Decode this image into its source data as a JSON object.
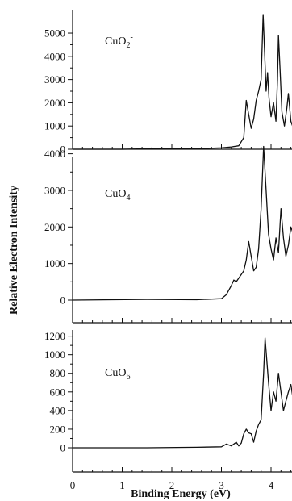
{
  "chart_data": {
    "type": "line",
    "ylabel": "Relative Electron Intensity",
    "xlabel": "Binding Energy (eV)",
    "xlim": [
      0,
      4.5
    ],
    "x_ticks": [
      0,
      1,
      2,
      3,
      4
    ],
    "grid": false,
    "legend": "none",
    "line_color": "#111111",
    "panels": [
      {
        "species": "CuO",
        "species_sub": "2",
        "species_sup": "-",
        "ylim": [
          0,
          5800
        ],
        "y_ticks": [
          0,
          1000,
          2000,
          3000,
          4000,
          5000
        ],
        "x": [
          0,
          1.0,
          1.5,
          1.6,
          1.7,
          2.5,
          3.0,
          3.2,
          3.35,
          3.45,
          3.5,
          3.55,
          3.6,
          3.65,
          3.7,
          3.75,
          3.8,
          3.84,
          3.87,
          3.9,
          3.93,
          3.96,
          4.0,
          4.05,
          4.1,
          4.13,
          4.15,
          4.18,
          4.22,
          4.27,
          4.32,
          4.35,
          4.4,
          4.45,
          4.5
        ],
        "y": [
          0,
          0,
          20,
          40,
          20,
          20,
          60,
          100,
          150,
          500,
          2100,
          1500,
          900,
          1300,
          2100,
          2500,
          3000,
          5800,
          4200,
          2500,
          3300,
          2200,
          1400,
          2000,
          1200,
          3000,
          4900,
          3500,
          1600,
          1000,
          1800,
          2400,
          1200,
          900,
          800
        ]
      },
      {
        "species": "CuO",
        "species_sub": "4",
        "species_sup": "-",
        "ylim": [
          0,
          4300
        ],
        "y_ticks": [
          0,
          1000,
          2000,
          3000,
          4000
        ],
        "x": [
          0,
          1.5,
          2.5,
          3.0,
          3.1,
          3.2,
          3.25,
          3.3,
          3.4,
          3.45,
          3.5,
          3.55,
          3.6,
          3.65,
          3.7,
          3.75,
          3.8,
          3.85,
          3.9,
          3.95,
          4.0,
          4.05,
          4.1,
          4.15,
          4.2,
          4.25,
          4.3,
          4.35,
          4.4,
          4.45,
          4.5
        ],
        "y": [
          0,
          20,
          10,
          40,
          150,
          400,
          550,
          500,
          700,
          800,
          1100,
          1600,
          1200,
          800,
          900,
          1400,
          2500,
          4200,
          3000,
          1800,
          1400,
          1100,
          1700,
          1300,
          2500,
          1700,
          1200,
          1500,
          2000,
          1800,
          1300
        ]
      },
      {
        "species": "CuO",
        "species_sub": "6",
        "species_sup": "-",
        "ylim": [
          0,
          1240
        ],
        "y_ticks": [
          0,
          200,
          400,
          600,
          800,
          1000,
          1200
        ],
        "x": [
          0,
          1.5,
          2.5,
          3.0,
          3.1,
          3.2,
          3.3,
          3.35,
          3.4,
          3.45,
          3.5,
          3.55,
          3.6,
          3.65,
          3.7,
          3.75,
          3.8,
          3.85,
          3.88,
          3.92,
          3.95,
          4.0,
          4.05,
          4.1,
          4.15,
          4.2,
          4.25,
          4.3,
          4.35,
          4.4,
          4.45,
          4.5
        ],
        "y": [
          0,
          0,
          5,
          10,
          40,
          20,
          60,
          20,
          50,
          150,
          200,
          160,
          150,
          60,
          180,
          250,
          300,
          800,
          1180,
          900,
          700,
          400,
          600,
          500,
          800,
          600,
          400,
          500,
          600,
          680,
          500,
          300
        ]
      }
    ]
  }
}
